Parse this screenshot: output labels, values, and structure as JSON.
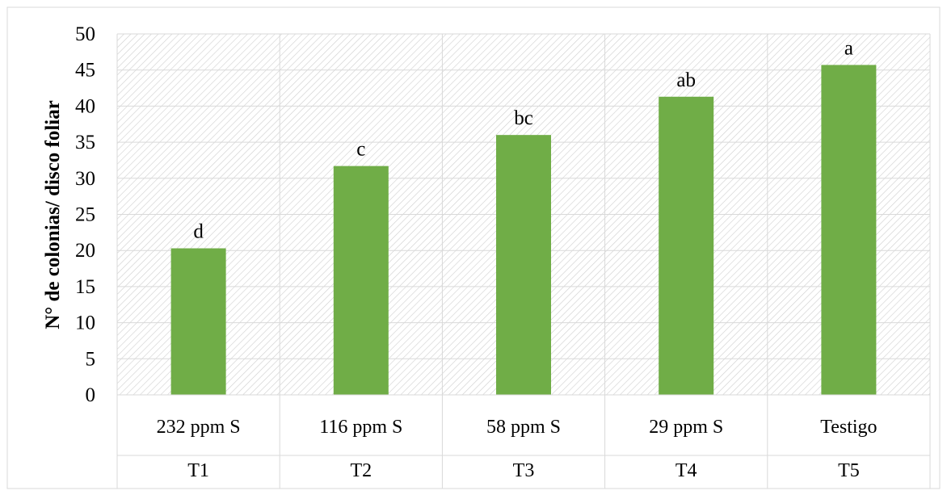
{
  "chart_data": {
    "type": "bar",
    "title": "",
    "xlabel": "",
    "ylabel": "N° de colonias/ disco foliar",
    "ylim": [
      0,
      50
    ],
    "ytick_step": 5,
    "grid": true,
    "categories": [
      "232 ppm S",
      "116 ppm S",
      "58 ppm S",
      "29 ppm S",
      "Testigo"
    ],
    "categories_level2": [
      "T1",
      "T2",
      "T3",
      "T4",
      "T5"
    ],
    "values": [
      20.3,
      31.7,
      36.0,
      41.3,
      45.7
    ],
    "data_labels": [
      "d",
      "c",
      "bc",
      "ab",
      "a"
    ],
    "bar_color": "#70ad47"
  }
}
